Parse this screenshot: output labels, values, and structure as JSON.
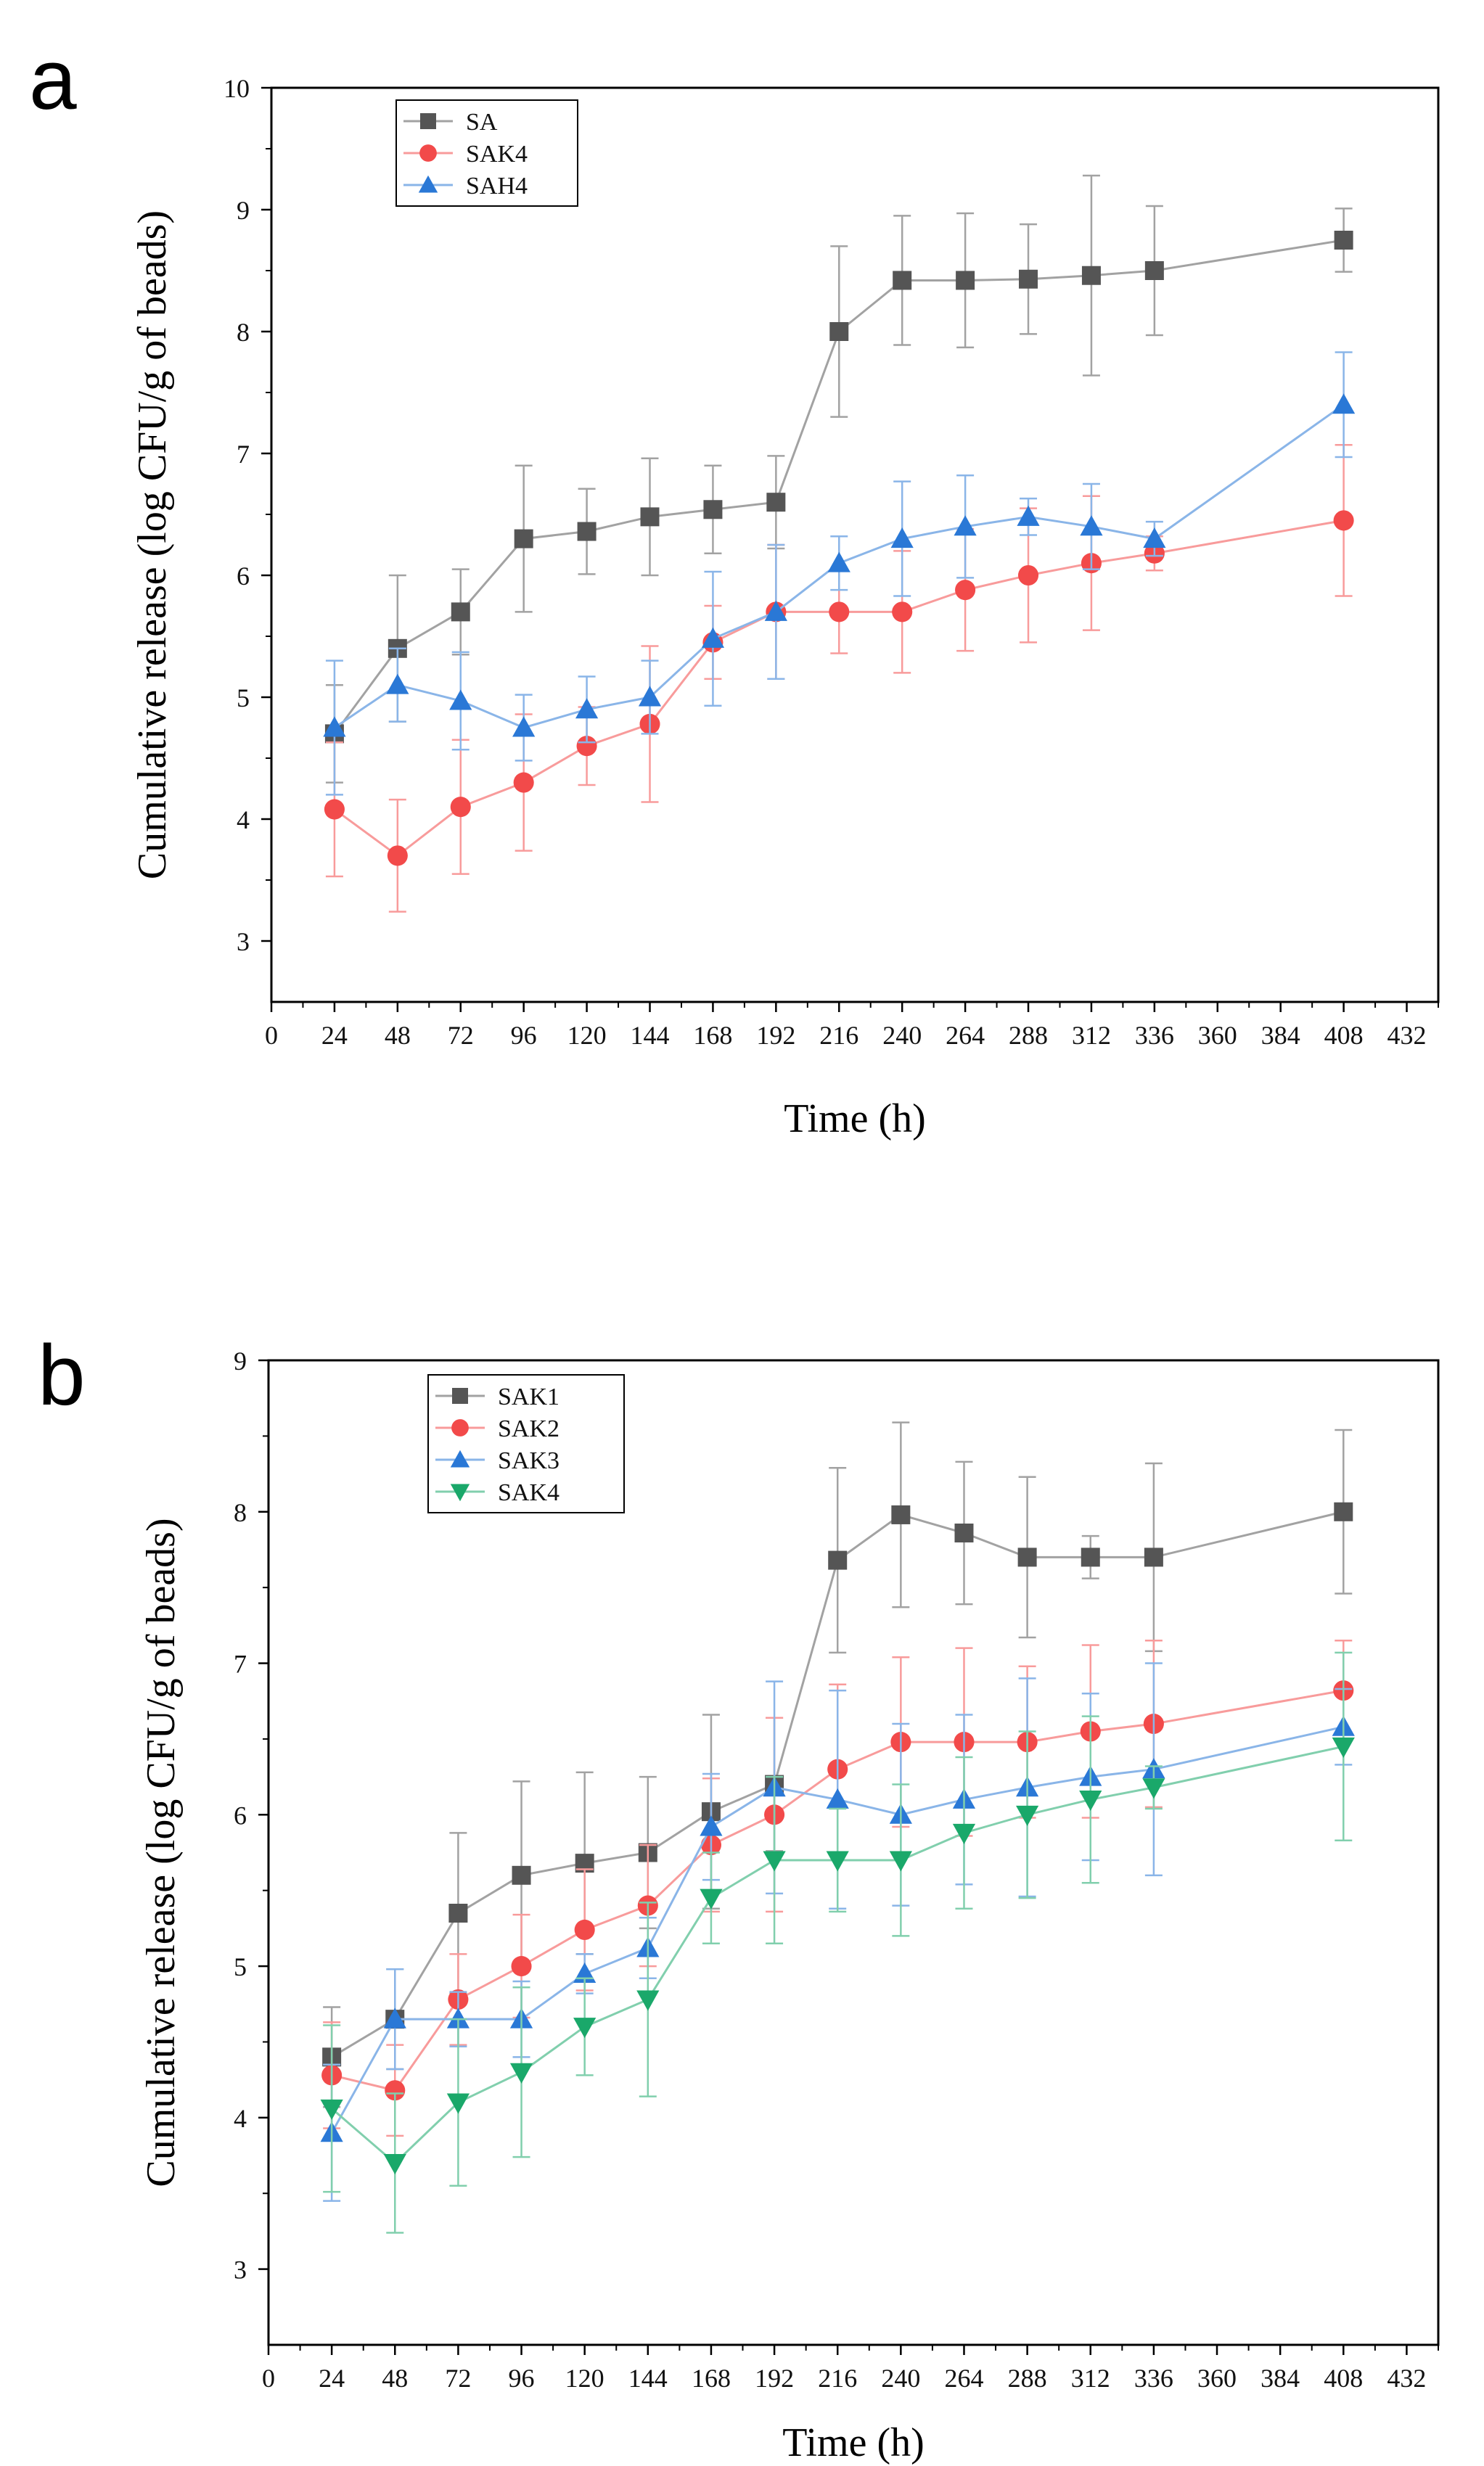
{
  "chart_data": [
    {
      "panel": "a",
      "type": "line",
      "title": "",
      "xlabel": "Time (h)",
      "ylabel": "Cumulative release (log CFU/g of beads)",
      "xlim": [
        0,
        444
      ],
      "ylim": [
        2.5,
        10
      ],
      "xticks": [
        0,
        24,
        48,
        72,
        96,
        120,
        144,
        168,
        192,
        216,
        240,
        264,
        288,
        312,
        336,
        360,
        384,
        408,
        432
      ],
      "yticks": [
        3,
        4,
        5,
        6,
        7,
        8,
        9,
        10
      ],
      "legend": "top-left",
      "grid": false,
      "series": [
        {
          "name": "SA",
          "color": "#555555",
          "marker": "square",
          "x": [
            24,
            48,
            72,
            96,
            120,
            144,
            168,
            192,
            216,
            240,
            264,
            288,
            312,
            336,
            408
          ],
          "values": [
            4.7,
            5.4,
            5.7,
            6.3,
            6.36,
            6.48,
            6.54,
            6.6,
            8.0,
            8.42,
            8.42,
            8.43,
            8.46,
            8.5,
            8.75
          ],
          "errors": [
            0.4,
            0.6,
            0.35,
            0.6,
            0.35,
            0.48,
            0.36,
            0.38,
            0.7,
            0.53,
            0.55,
            0.45,
            0.82,
            0.53,
            0.26
          ]
        },
        {
          "name": "SAK4",
          "color": "#f24a4a",
          "marker": "circle",
          "x": [
            24,
            48,
            72,
            96,
            120,
            144,
            168,
            192,
            216,
            240,
            264,
            288,
            312,
            336,
            408
          ],
          "values": [
            4.08,
            3.7,
            4.1,
            4.3,
            4.6,
            4.78,
            5.45,
            5.7,
            5.7,
            5.7,
            5.88,
            6.0,
            6.1,
            6.18,
            6.45
          ],
          "errors": [
            0.55,
            0.46,
            0.55,
            0.56,
            0.32,
            0.64,
            0.3,
            0.55,
            0.34,
            0.5,
            0.5,
            0.55,
            0.55,
            0.14,
            0.62
          ]
        },
        {
          "name": "SAH4",
          "color": "#2a78d6",
          "marker": "triangle-up",
          "x": [
            24,
            48,
            72,
            96,
            120,
            144,
            168,
            192,
            216,
            240,
            264,
            288,
            312,
            336,
            408
          ],
          "values": [
            4.75,
            5.1,
            4.97,
            4.75,
            4.9,
            5.0,
            5.48,
            5.7,
            6.1,
            6.3,
            6.4,
            6.48,
            6.4,
            6.3,
            7.4
          ],
          "errors": [
            0.55,
            0.3,
            0.4,
            0.27,
            0.27,
            0.3,
            0.55,
            0.55,
            0.22,
            0.47,
            0.42,
            0.15,
            0.35,
            0.14,
            0.43
          ]
        }
      ]
    },
    {
      "panel": "b",
      "type": "line",
      "title": "",
      "xlabel": "Time (h)",
      "ylabel": "Cumulative release (log CFU/g of beads)",
      "xlim": [
        0,
        444
      ],
      "ylim": [
        2.5,
        9
      ],
      "xticks": [
        0,
        24,
        48,
        72,
        96,
        120,
        144,
        168,
        192,
        216,
        240,
        264,
        288,
        312,
        336,
        360,
        384,
        408,
        432
      ],
      "yticks": [
        3,
        4,
        5,
        6,
        7,
        8,
        9
      ],
      "legend": "top-left",
      "grid": false,
      "series": [
        {
          "name": "SAK1",
          "color": "#555555",
          "marker": "square",
          "x": [
            24,
            48,
            72,
            96,
            120,
            144,
            168,
            192,
            216,
            240,
            264,
            288,
            312,
            336,
            408
          ],
          "values": [
            4.4,
            4.65,
            5.35,
            5.6,
            5.68,
            5.75,
            6.02,
            6.2,
            7.68,
            7.98,
            7.86,
            7.7,
            7.7,
            7.7,
            8.0
          ],
          "errors": [
            0.33,
            0.33,
            0.53,
            0.62,
            0.6,
            0.5,
            0.64,
            0.44,
            0.61,
            0.61,
            0.47,
            0.53,
            0.14,
            0.62,
            0.54
          ]
        },
        {
          "name": "SAK2",
          "color": "#f24a4a",
          "marker": "circle",
          "x": [
            24,
            48,
            72,
            96,
            120,
            144,
            168,
            192,
            216,
            240,
            264,
            288,
            312,
            336,
            408
          ],
          "values": [
            4.28,
            4.18,
            4.78,
            5.0,
            5.24,
            5.4,
            5.8,
            6.0,
            6.3,
            6.48,
            6.48,
            6.48,
            6.55,
            6.6,
            6.82
          ],
          "errors": [
            0.35,
            0.3,
            0.3,
            0.34,
            0.4,
            0.4,
            0.44,
            0.64,
            0.56,
            0.56,
            0.62,
            0.5,
            0.57,
            0.55,
            0.33
          ]
        },
        {
          "name": "SAK3",
          "color": "#2a78d6",
          "marker": "triangle-up",
          "x": [
            24,
            48,
            72,
            96,
            120,
            144,
            168,
            192,
            216,
            240,
            264,
            288,
            312,
            336,
            408
          ],
          "values": [
            3.9,
            4.65,
            4.65,
            4.65,
            4.95,
            5.12,
            5.92,
            6.18,
            6.1,
            6.0,
            6.1,
            6.18,
            6.25,
            6.3,
            6.58
          ],
          "errors": [
            0.45,
            0.33,
            0.18,
            0.25,
            0.13,
            0.2,
            0.35,
            0.7,
            0.72,
            0.6,
            0.56,
            0.72,
            0.55,
            0.7,
            0.25
          ]
        },
        {
          "name": "SAK4",
          "color": "#1aa86a",
          "marker": "triangle-down",
          "x": [
            24,
            48,
            72,
            96,
            120,
            144,
            168,
            192,
            216,
            240,
            264,
            288,
            312,
            336,
            408
          ],
          "values": [
            4.06,
            3.7,
            4.1,
            4.3,
            4.6,
            4.78,
            5.45,
            5.7,
            5.7,
            5.7,
            5.88,
            6.0,
            6.1,
            6.18,
            6.45
          ],
          "errors": [
            0.55,
            0.46,
            0.55,
            0.56,
            0.32,
            0.64,
            0.3,
            0.55,
            0.34,
            0.5,
            0.5,
            0.55,
            0.55,
            0.14,
            0.62
          ]
        }
      ]
    }
  ]
}
